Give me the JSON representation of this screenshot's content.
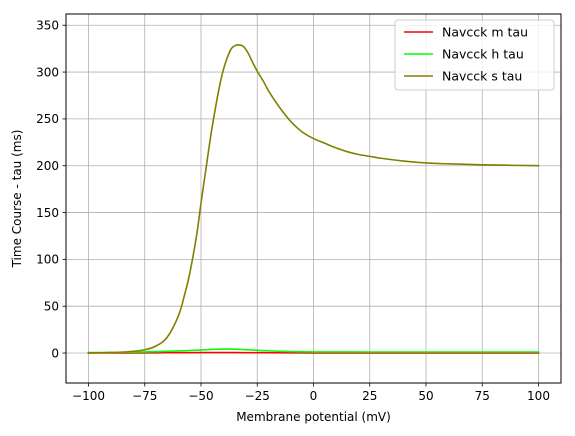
{
  "chart_data": {
    "type": "line",
    "title": "",
    "xlabel": "Membrane potential (mV)",
    "ylabel": "Time Course - tau (ms)",
    "xlim": [
      -110,
      110
    ],
    "ylim": [
      -32,
      362
    ],
    "xticks": [
      -100,
      -75,
      -50,
      -25,
      0,
      25,
      50,
      75,
      100
    ],
    "yticks": [
      0,
      50,
      100,
      150,
      200,
      250,
      300,
      350
    ],
    "grid": true,
    "legend": "top-right",
    "series": [
      {
        "name": "Navcck m tau",
        "color": "#ff0000",
        "x": [
          -100,
          -90,
          -80,
          -70,
          -60,
          -50,
          -45,
          -40,
          -35,
          -30,
          -25,
          -20,
          -10,
          0,
          25,
          50,
          75,
          100
        ],
        "y": [
          0.05,
          0.1,
          0.15,
          0.25,
          0.35,
          0.45,
          0.5,
          0.5,
          0.45,
          0.4,
          0.35,
          0.3,
          0.2,
          0.15,
          0.1,
          0.05,
          0.05,
          0.05
        ]
      },
      {
        "name": "Navcck h tau",
        "color": "#00ff00",
        "x": [
          -100,
          -90,
          -80,
          -70,
          -60,
          -50,
          -45,
          -40,
          -35,
          -30,
          -25,
          -20,
          -15,
          -10,
          -5,
          0,
          25,
          50,
          75,
          100
        ],
        "y": [
          0.5,
          0.6,
          0.9,
          1.4,
          2.2,
          3.3,
          3.9,
          4.2,
          4.1,
          3.6,
          2.9,
          2.3,
          1.8,
          1.5,
          1.3,
          1.2,
          1.1,
          1.1,
          1.1,
          1.1
        ]
      },
      {
        "name": "Navcck s tau",
        "color": "#808000",
        "x": [
          -100,
          -90,
          -85,
          -80,
          -75,
          -70,
          -65,
          -60,
          -57,
          -55,
          -52,
          -50,
          -47,
          -45,
          -42,
          -40,
          -37,
          -35,
          -33,
          -31,
          -29,
          -27,
          -25,
          -22,
          -20,
          -15,
          -10,
          -5,
          0,
          5,
          10,
          15,
          20,
          25,
          30,
          40,
          50,
          60,
          75,
          100
        ],
        "y": [
          0.1,
          0.5,
          1.0,
          1.8,
          3.5,
          7.5,
          17,
          40,
          65,
          85,
          125,
          160,
          210,
          242,
          282,
          303,
          323,
          328,
          329,
          327,
          320,
          310,
          301,
          289,
          280,
          262,
          247,
          236,
          229,
          224,
          219,
          215,
          212,
          210,
          208,
          205,
          203,
          202,
          201,
          200
        ]
      }
    ]
  }
}
